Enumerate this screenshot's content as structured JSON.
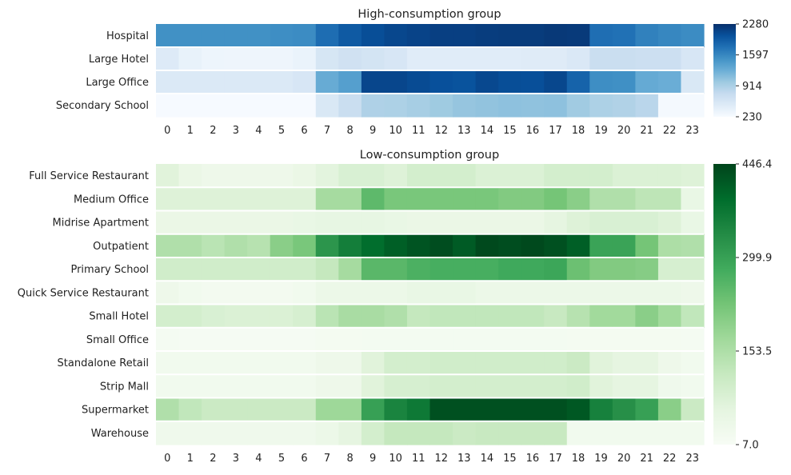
{
  "chart_data": [
    {
      "type": "heatmap",
      "title": "High-consumption group",
      "colormap": "Blues",
      "colors": [
        "#f7fbff",
        "#08306b"
      ],
      "x": [
        "0",
        "1",
        "2",
        "3",
        "4",
        "5",
        "6",
        "7",
        "8",
        "9",
        "10",
        "11",
        "12",
        "13",
        "14",
        "15",
        "16",
        "17",
        "18",
        "19",
        "20",
        "21",
        "22",
        "23"
      ],
      "y": [
        "Hospital",
        "Large Hotel",
        "Large Office",
        "Secondary School"
      ],
      "zlim": [
        230,
        2280
      ],
      "colorbar_ticks": [
        "2280",
        "1597",
        "914",
        "230"
      ],
      "colorbar_tick_values": [
        2280,
        1597,
        914,
        230
      ],
      "values": [
        [
          1520,
          1520,
          1520,
          1520,
          1520,
          1540,
          1560,
          1800,
          1950,
          2050,
          2100,
          2130,
          2160,
          2160,
          2180,
          2190,
          2190,
          2210,
          2200,
          1790,
          1770,
          1640,
          1600,
          1560
        ],
        [
          500,
          380,
          330,
          320,
          320,
          320,
          360,
          570,
          640,
          600,
          560,
          470,
          470,
          470,
          470,
          470,
          480,
          480,
          530,
          700,
          700,
          680,
          680,
          560
        ],
        [
          520,
          520,
          520,
          520,
          520,
          520,
          560,
          1280,
          1390,
          2110,
          2110,
          2070,
          2030,
          2010,
          2090,
          2050,
          2040,
          2100,
          1880,
          1540,
          1530,
          1290,
          1260,
          540
        ],
        [
          240,
          240,
          240,
          240,
          240,
          240,
          240,
          540,
          700,
          890,
          900,
          940,
          990,
          1040,
          1060,
          1080,
          1070,
          1080,
          980,
          900,
          880,
          820,
          260,
          260
        ]
      ]
    },
    {
      "type": "heatmap",
      "title": "Low-consumption group",
      "colormap": "Greens",
      "colors": [
        "#f7fcf5",
        "#00441b"
      ],
      "x": [
        "0",
        "1",
        "2",
        "3",
        "4",
        "5",
        "6",
        "7",
        "8",
        "9",
        "10",
        "11",
        "12",
        "13",
        "14",
        "15",
        "16",
        "17",
        "18",
        "19",
        "20",
        "21",
        "22",
        "23"
      ],
      "y": [
        "Full Service Restaurant",
        "Medium Office",
        "Midrise Apartment",
        "Outpatient",
        "Primary School",
        "Quick Service Restaurant",
        "Small Hotel",
        "Small Office",
        "Standalone Retail",
        "Strip Mall",
        "Supermarket",
        "Warehouse"
      ],
      "zlim": [
        7.0,
        446.4
      ],
      "colorbar_ticks": [
        "446.4",
        "299.9",
        "153.5",
        "7.0"
      ],
      "colorbar_tick_values": [
        446.4,
        299.9,
        153.5,
        7.0
      ],
      "values": [
        [
          70,
          45,
          35,
          35,
          35,
          35,
          45,
          65,
          85,
          85,
          75,
          95,
          95,
          95,
          80,
          80,
          80,
          95,
          95,
          95,
          80,
          80,
          80,
          75
        ],
        [
          75,
          75,
          75,
          75,
          75,
          75,
          75,
          165,
          165,
          250,
          220,
          220,
          220,
          220,
          220,
          210,
          210,
          225,
          200,
          150,
          150,
          130,
          130,
          50
        ],
        [
          45,
          45,
          45,
          45,
          45,
          45,
          50,
          55,
          55,
          55,
          50,
          45,
          45,
          45,
          45,
          45,
          45,
          60,
          75,
          85,
          85,
          85,
          75,
          50
        ],
        [
          150,
          150,
          135,
          150,
          140,
          200,
          220,
          320,
          360,
          390,
          410,
          425,
          435,
          415,
          440,
          435,
          440,
          430,
          410,
          295,
          295,
          225,
          155,
          150
        ],
        [
          100,
          100,
          100,
          100,
          100,
          100,
          100,
          120,
          165,
          255,
          255,
          270,
          275,
          275,
          275,
          285,
          285,
          290,
          235,
          210,
          210,
          205,
          90,
          90
        ],
        [
          35,
          25,
          20,
          20,
          20,
          20,
          25,
          40,
          40,
          40,
          40,
          50,
          50,
          50,
          40,
          40,
          40,
          40,
          40,
          40,
          40,
          40,
          40,
          35
        ],
        [
          95,
          95,
          85,
          80,
          80,
          80,
          90,
          135,
          160,
          160,
          150,
          120,
          125,
          125,
          125,
          125,
          125,
          115,
          140,
          170,
          170,
          200,
          170,
          125
        ],
        [
          15,
          12,
          12,
          12,
          12,
          12,
          12,
          17,
          17,
          18,
          18,
          18,
          18,
          18,
          18,
          18,
          18,
          18,
          17,
          17,
          17,
          17,
          17,
          15
        ],
        [
          25,
          25,
          25,
          25,
          25,
          25,
          25,
          35,
          35,
          70,
          95,
          95,
          100,
          100,
          100,
          100,
          100,
          100,
          110,
          70,
          60,
          60,
          35,
          25
        ],
        [
          25,
          25,
          25,
          25,
          25,
          25,
          25,
          35,
          35,
          70,
          90,
          90,
          95,
          95,
          95,
          95,
          95,
          95,
          100,
          70,
          60,
          60,
          30,
          25
        ],
        [
          150,
          125,
          110,
          110,
          110,
          110,
          110,
          175,
          175,
          300,
          350,
          370,
          430,
          430,
          430,
          430,
          430,
          430,
          420,
          355,
          330,
          300,
          200,
          110
        ],
        [
          30,
          30,
          30,
          30,
          30,
          30,
          30,
          40,
          60,
          95,
          120,
          120,
          120,
          110,
          115,
          115,
          115,
          115,
          25,
          25,
          25,
          25,
          25,
          25
        ]
      ]
    }
  ]
}
